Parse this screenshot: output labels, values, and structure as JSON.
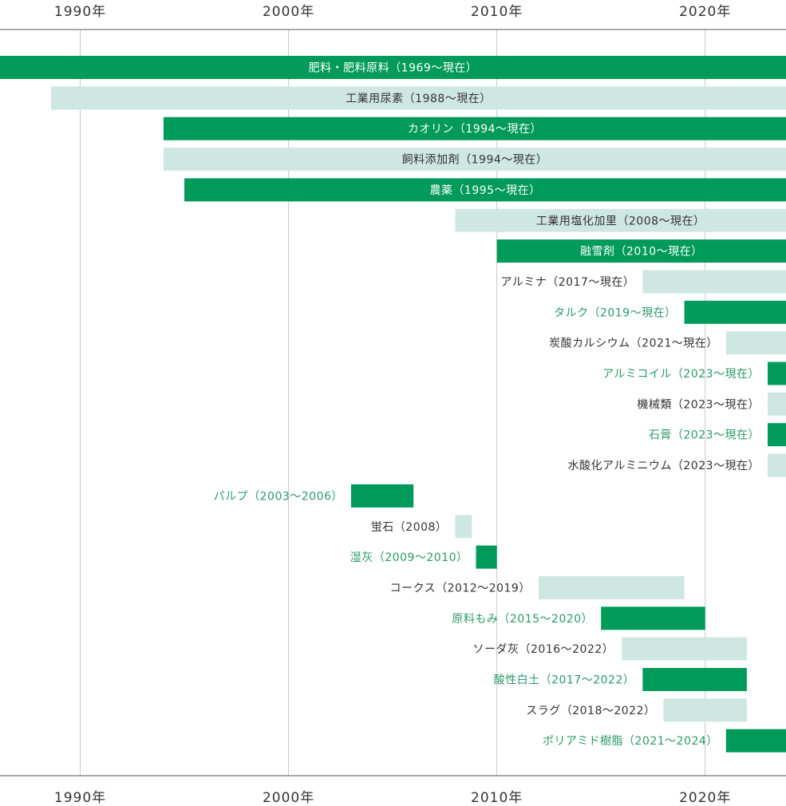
{
  "chart_data": {
    "type": "bar",
    "subtype": "timeline",
    "x_unit": "year",
    "xlim": [
      1986.15,
      2023.88
    ],
    "x_ticks": [
      1990,
      2000,
      2010,
      2020
    ],
    "x_tick_labels": [
      "1990年",
      "2000年",
      "2010年",
      "2020年"
    ],
    "grid": true,
    "colors": {
      "dark": "#009a5a",
      "light": "#cfe7e2",
      "axis": "#555555",
      "grid": "#c8c8c8",
      "ongoing_text": "#ffffff",
      "past_text_dark": "#2a9a66",
      "past_text_light": "#333333"
    },
    "series": [
      {
        "label": "肥料・肥料原料（1969～現在）",
        "start": 1969,
        "end": 2023.88,
        "ongoing": true,
        "shade": "dark"
      },
      {
        "label": "工業用尿素（1988～現在）",
        "start": 1988.6,
        "end": 2023.88,
        "ongoing": true,
        "shade": "light"
      },
      {
        "label": "カオリン（1994～現在）",
        "start": 1994,
        "end": 2023.88,
        "ongoing": true,
        "shade": "dark"
      },
      {
        "label": "飼料添加剤（1994～現在）",
        "start": 1994,
        "end": 2023.88,
        "ongoing": true,
        "shade": "light"
      },
      {
        "label": "農薬（1995～現在）",
        "start": 1995,
        "end": 2023.88,
        "ongoing": true,
        "shade": "dark"
      },
      {
        "label": "工業用塩化加里（2008～現在）",
        "start": 2008,
        "end": 2023.88,
        "ongoing": true,
        "shade": "light"
      },
      {
        "label": "融雪剤（2010～現在）",
        "start": 2010,
        "end": 2023.88,
        "ongoing": true,
        "shade": "dark"
      },
      {
        "label": "アルミナ（2017～現在）",
        "start": 2017,
        "end": 2023.88,
        "ongoing": true,
        "shade": "light"
      },
      {
        "label": "タルク（2019～現在）",
        "start": 2019,
        "end": 2023.88,
        "ongoing": true,
        "shade": "dark"
      },
      {
        "label": "炭酸カルシウム（2021～現在）",
        "start": 2021,
        "end": 2023.88,
        "ongoing": true,
        "shade": "light"
      },
      {
        "label": "アルミコイル（2023～現在）",
        "start": 2023,
        "end": 2023.88,
        "ongoing": true,
        "shade": "dark"
      },
      {
        "label": "機械類（2023～現在）",
        "start": 2023,
        "end": 2023.88,
        "ongoing": true,
        "shade": "light"
      },
      {
        "label": "石膏（2023～現在）",
        "start": 2023,
        "end": 2023.88,
        "ongoing": true,
        "shade": "dark"
      },
      {
        "label": "水酸化アルミニウム（2023～現在）",
        "start": 2023,
        "end": 2023.88,
        "ongoing": true,
        "shade": "light"
      },
      {
        "label": "パルプ（2003～2006）",
        "start": 2003,
        "end": 2006,
        "ongoing": false,
        "shade": "dark"
      },
      {
        "label": "蛍石（2008）",
        "start": 2008,
        "end": 2008.8,
        "ongoing": false,
        "shade": "light"
      },
      {
        "label": "湿灰（2009～2010）",
        "start": 2009,
        "end": 2010,
        "ongoing": false,
        "shade": "dark"
      },
      {
        "label": "コークス（2012～2019）",
        "start": 2012,
        "end": 2019,
        "ongoing": false,
        "shade": "light"
      },
      {
        "label": "原料もみ（2015～2020）",
        "start": 2015,
        "end": 2020,
        "ongoing": false,
        "shade": "dark"
      },
      {
        "label": "ソーダ灰（2016～2022）",
        "start": 2016,
        "end": 2022,
        "ongoing": false,
        "shade": "light"
      },
      {
        "label": "酸性白土（2017～2022）",
        "start": 2017,
        "end": 2022,
        "ongoing": false,
        "shade": "dark"
      },
      {
        "label": "スラグ（2018～2022）",
        "start": 2018,
        "end": 2022,
        "ongoing": false,
        "shade": "light"
      },
      {
        "label": "ポリアミド樹脂（2021～2024）",
        "start": 2021,
        "end": 2023.88,
        "ongoing": false,
        "shade": "dark"
      }
    ]
  }
}
